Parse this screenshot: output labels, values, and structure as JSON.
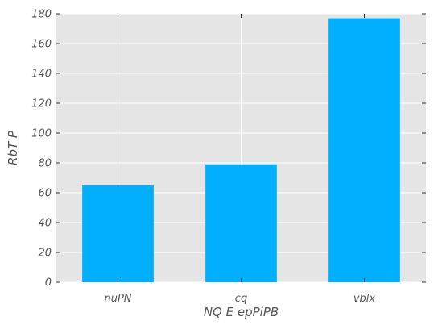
{
  "chart_data": {
    "type": "bar",
    "categories": [
      "nuPN",
      "cq",
      "vblx"
    ],
    "values": [
      65,
      79,
      177
    ],
    "xlabel": "NQ E epPiPB",
    "ylabel": "RbT P",
    "ylim": [
      0,
      180
    ],
    "yticks": [
      0,
      20,
      40,
      60,
      80,
      100,
      120,
      140,
      160,
      180
    ],
    "grid": true,
    "legend": "none",
    "colors": {
      "bar": "#00b0ff",
      "plot_background": "#e5e5e5",
      "grid": "#ffffff",
      "text": "#555555"
    }
  }
}
